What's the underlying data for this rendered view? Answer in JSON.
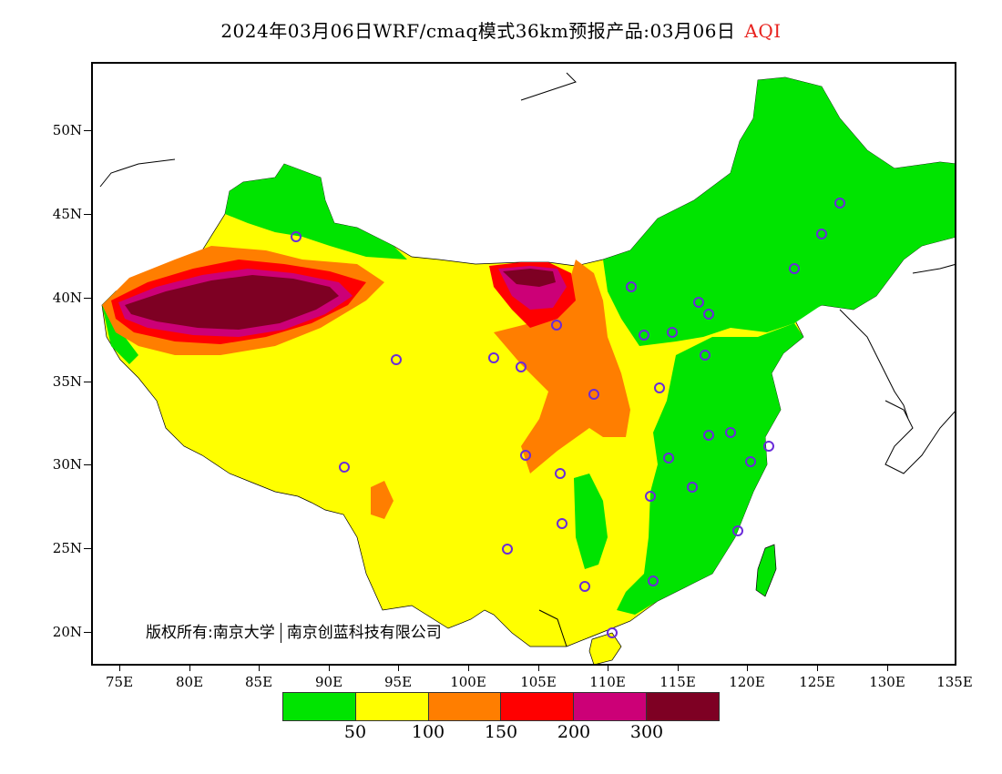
{
  "title": {
    "main": "2024年03月06日WRF/cmaq模式36km预报产品:03月06日",
    "variable": "AQI"
  },
  "axes": {
    "lat_labels": [
      "20N",
      "25N",
      "30N",
      "35N",
      "40N",
      "45N",
      "50N"
    ],
    "lat_values": [
      20,
      25,
      30,
      35,
      40,
      45,
      50
    ],
    "lon_labels": [
      "75E",
      "80E",
      "85E",
      "90E",
      "95E",
      "100E",
      "105E",
      "110E",
      "115E",
      "120E",
      "125E",
      "130E",
      "135E"
    ],
    "lon_values": [
      75,
      80,
      85,
      90,
      95,
      100,
      105,
      110,
      115,
      120,
      125,
      130,
      135
    ],
    "lon_range": [
      73,
      135
    ],
    "lat_range": [
      18,
      54
    ]
  },
  "legend": {
    "colors": [
      "#00e400",
      "#ffff00",
      "#ff7e00",
      "#ff0000",
      "#cc0077",
      "#7e0023"
    ],
    "labels": [
      "50",
      "100",
      "150",
      "200",
      "300"
    ]
  },
  "copyright": {
    "prefix": "版权所有:南京大学",
    "org": "南京创蓝科技有限公司"
  },
  "map": {
    "projection": "lat-lon",
    "categories": [
      "0-50",
      "50-100",
      "100-150",
      "150-200",
      "200-300",
      ">300"
    ]
  }
}
